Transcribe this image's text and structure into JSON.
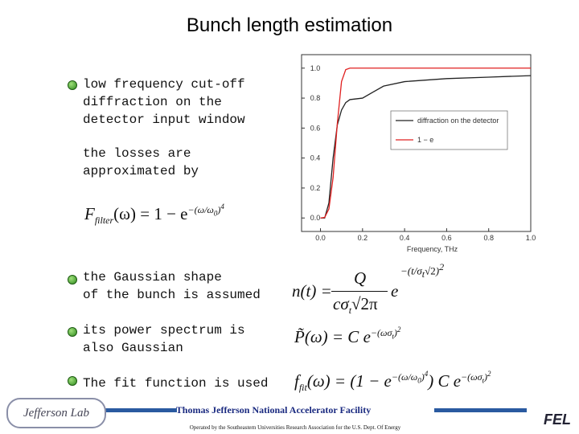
{
  "title": "Bunch length estimation",
  "bullets": [
    "low frequency cut-off\ndiffraction on the\ndetector input window",
    "the Gaussian shape\nof the bunch is assumed",
    "its power spectrum is\nalso Gaussian",
    "The fit function is used"
  ],
  "note": "the losses are\napproximated by",
  "formula_filter": [
    "F",
    "filter",
    "(ω) = 1 − e",
    "−(ω/ω",
    "0",
    ")",
    "4"
  ],
  "formula_n": [
    "n(t) =",
    "Q",
    "cσ",
    "t",
    "√2π",
    "e",
    "−(",
    "t",
    "σ",
    "t",
    "√2",
    ")",
    "2"
  ],
  "formula_p": [
    "P̃(ω) = C e",
    "−(ωσ",
    "t",
    ")",
    "2"
  ],
  "formula_fit": [
    "f",
    "fit",
    "(ω) = (1 − e",
    "−(ω/ω",
    "0",
    ")",
    "4",
    ") C e",
    "−(ωσ",
    "t",
    ")",
    "2"
  ],
  "chart": {
    "type": "line",
    "x_label": "Frequency, THz",
    "x": [
      0,
      0.02,
      0.04,
      0.06,
      0.08,
      0.1,
      0.12,
      0.14,
      0.2,
      0.25,
      0.3,
      0.4,
      0.6,
      0.8,
      1.0
    ],
    "series": [
      {
        "name": "diffraction on the detector",
        "color": "#222222",
        "values": [
          0,
          0,
          0.1,
          0.4,
          0.62,
          0.72,
          0.77,
          0.79,
          0.8,
          0.84,
          0.88,
          0.91,
          0.93,
          0.94,
          0.95
        ]
      },
      {
        "name": "1 − e",
        "color": "#e02020",
        "values": [
          0,
          0.004,
          0.06,
          0.27,
          0.63,
          0.91,
          0.99,
          1,
          1,
          1,
          1,
          1,
          1,
          1,
          1
        ]
      }
    ],
    "xlim": [
      -0.09,
      1.0
    ],
    "ylim": [
      -0.09,
      1.09
    ],
    "xticks": [
      {
        "value": 0,
        "label": "0.0"
      },
      0.2,
      0.4,
      0.6,
      0.8,
      {
        "value": 1,
        "label": "1.0"
      }
    ],
    "yticks": [
      {
        "value": 0,
        "label": "0.0"
      },
      0.2,
      0.4,
      0.6,
      0.8,
      {
        "value": 1,
        "label": "1.0"
      }
    ]
  },
  "footer": {
    "org": "Thomas Jefferson National Accelerator Facility",
    "operated": "Operated by the Southeastern Universities Research Association for the U.S. Dept. Of Energy",
    "logo_left": "Jefferson Lab",
    "logo_right": "FEL"
  }
}
